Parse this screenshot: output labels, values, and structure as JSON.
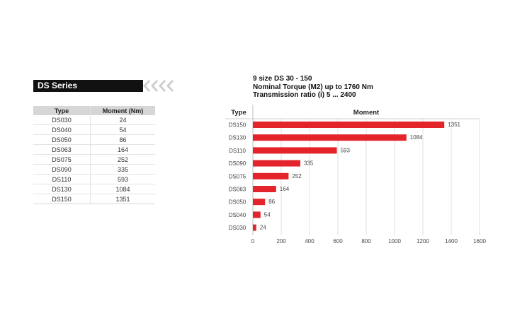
{
  "banner": {
    "title": "DS Series"
  },
  "table": {
    "headers": [
      "Type",
      "Moment (Nm)"
    ],
    "rows": [
      [
        "DS030",
        "24"
      ],
      [
        "DS040",
        "54"
      ],
      [
        "DS050",
        "86"
      ],
      [
        "DS063",
        "164"
      ],
      [
        "DS075",
        "252"
      ],
      [
        "DS090",
        "335"
      ],
      [
        "DS110",
        "593"
      ],
      [
        "DS130",
        "1084"
      ],
      [
        "DS150",
        "1351"
      ]
    ]
  },
  "info": {
    "line1": "9 size  DS 30 - 150",
    "line2": "Nominal Torque (M2) up to 1760 Nm",
    "line3": "Transmission ratio (i) 5 ... 2400"
  },
  "chart_data": {
    "type": "bar",
    "orientation": "horizontal",
    "category_header": "Type",
    "value_header": "Moment",
    "categories": [
      "DS150",
      "DS130",
      "DS110",
      "DS090",
      "DS075",
      "DS063",
      "DS050",
      "DS040",
      "DS030"
    ],
    "values": [
      1351,
      1084,
      593,
      335,
      252,
      164,
      86,
      54,
      24
    ],
    "xlim": [
      0,
      1600
    ],
    "xticks": [
      0,
      200,
      400,
      600,
      800,
      1000,
      1200,
      1400,
      1600
    ],
    "bar_color": "#e3242b",
    "grid": true,
    "data_labels": true
  }
}
